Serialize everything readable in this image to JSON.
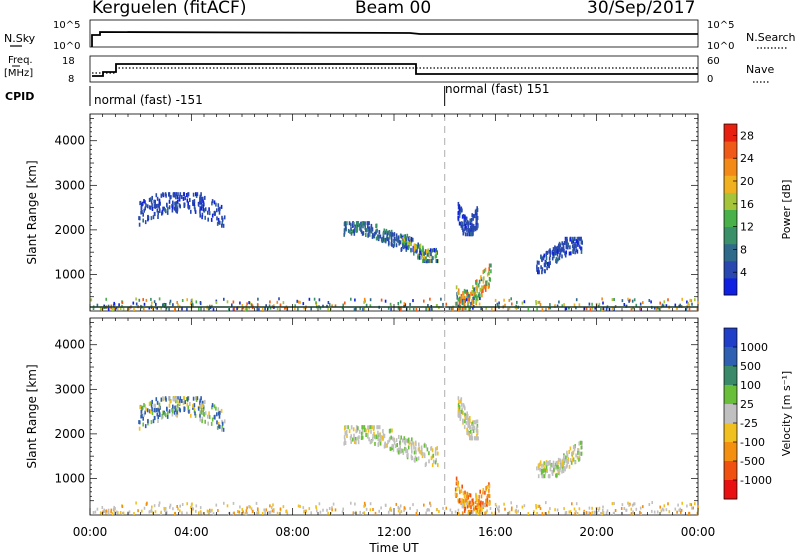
{
  "header": {
    "station": "Kerguelen (fitACF)",
    "beam": "Beam 00",
    "date": "30/Sep/2017"
  },
  "nsky_panel": {
    "left_label": "N.Sky",
    "right_label": "N.Search",
    "left_ticks": [
      "10^5",
      "10^0"
    ],
    "right_ticks": [
      "10^5",
      "10^0"
    ]
  },
  "freq_panel": {
    "left_label_line1": "Freq.",
    "left_label_line2": "[MHz]",
    "right_label": "Nave",
    "left_ticks": [
      "18",
      "8"
    ],
    "right_ticks": [
      "60",
      "0"
    ]
  },
  "cpid_panel": {
    "label": "CPID",
    "segments": [
      {
        "text": "normal (fast) -151",
        "start_hour": 0,
        "end_hour": 14.0
      },
      {
        "text": "normal (fast) 151",
        "start_hour": 14.0,
        "end_hour": 24
      }
    ]
  },
  "chart_data": [
    {
      "type": "heatmap",
      "title": "",
      "ylabel": "Slant Range [km]",
      "ylim": [
        180,
        4600
      ],
      "yticks": [
        "1000",
        "2000",
        "3000",
        "4000"
      ],
      "xlim": [
        0,
        24
      ],
      "colorbar": {
        "label": "Power [dB]",
        "ticks": [
          "4",
          "8",
          "12",
          "16",
          "20",
          "24",
          "28"
        ],
        "range": [
          0,
          30
        ]
      },
      "scatter_regions": [
        {
          "t": [
            1.9,
            5.3
          ],
          "r": [
            1850,
            2800
          ],
          "level": "low"
        },
        {
          "t": [
            10.0,
            12.6
          ],
          "r": [
            1550,
            2150
          ],
          "level": "low-mid"
        },
        {
          "t": [
            12.3,
            13.7
          ],
          "r": [
            1300,
            1900
          ],
          "level": "mixed"
        },
        {
          "t": [
            14.5,
            15.3
          ],
          "r": [
            1900,
            2800
          ],
          "level": "low"
        },
        {
          "t": [
            14.4,
            15.8
          ],
          "r": [
            250,
            1200
          ],
          "level": "high"
        },
        {
          "t": [
            17.6,
            19.4
          ],
          "r": [
            1050,
            1800
          ],
          "level": "low"
        },
        {
          "t": [
            0.0,
            24.0
          ],
          "r": [
            200,
            450
          ],
          "level": "noise"
        }
      ]
    },
    {
      "type": "heatmap",
      "title": "",
      "xlabel": "Time UT",
      "ylabel": "Slant Range [km]",
      "ylim": [
        180,
        4600
      ],
      "yticks": [
        "1000",
        "2000",
        "3000",
        "4000"
      ],
      "xlim": [
        0,
        24
      ],
      "xticks": [
        "00:00",
        "04:00",
        "08:00",
        "12:00",
        "16:00",
        "20:00",
        "00:00"
      ],
      "colorbar": {
        "label": "Velocity [m s⁻¹]",
        "ticks": [
          "1000",
          "500",
          "100",
          "25",
          "-25",
          "-100",
          "-500",
          "-1000"
        ]
      },
      "scatter_regions": [
        {
          "t": [
            1.9,
            5.3
          ],
          "r": [
            1850,
            2800
          ],
          "level": "mixed"
        },
        {
          "t": [
            10.0,
            13.7
          ],
          "r": [
            1300,
            2150
          ],
          "level": "near-zero"
        },
        {
          "t": [
            14.5,
            15.3
          ],
          "r": [
            1900,
            2800
          ],
          "level": "near-zero"
        },
        {
          "t": [
            14.4,
            15.8
          ],
          "r": [
            250,
            1200
          ],
          "level": "negative"
        },
        {
          "t": [
            17.6,
            19.4
          ],
          "r": [
            1050,
            1800
          ],
          "level": "near-zero"
        },
        {
          "t": [
            0.0,
            24.0
          ],
          "r": [
            200,
            450
          ],
          "level": "noise"
        }
      ]
    }
  ]
}
